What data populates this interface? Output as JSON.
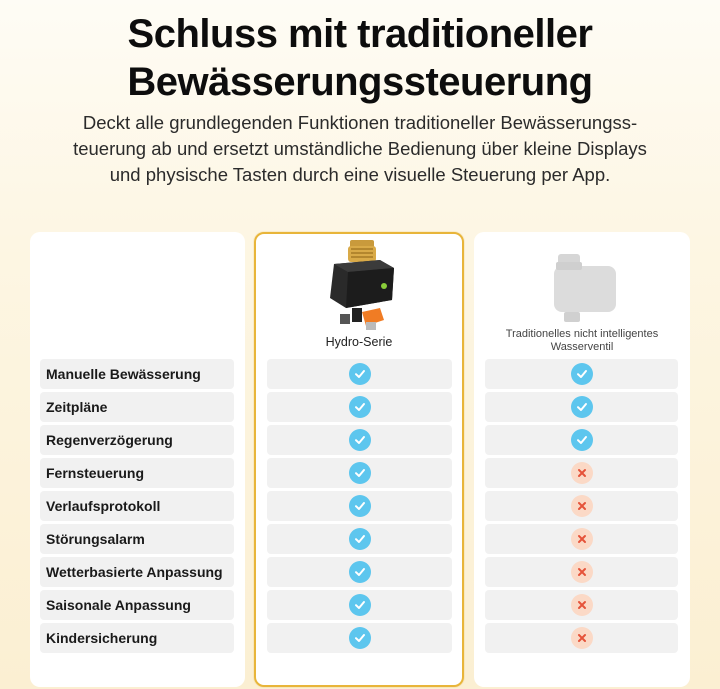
{
  "header": {
    "title_line1": "Schluss mit traditioneller",
    "title_line2": "Bewässerungssteuerung",
    "subtitle_line1": "Deckt alle grundlegenden Funktionen traditioneller Bewässerungss-",
    "subtitle_line2": "teuerung ab und ersetzt umständliche Bedienung über kleine Displays",
    "subtitle_line3": "und physische Tasten durch eine visuelle Steuerung per App."
  },
  "products": {
    "hydro": {
      "name": "Hydro-Serie"
    },
    "traditional": {
      "name_line1": "Traditionelles nicht intelligentes",
      "name_line2": "Wasserventil"
    }
  },
  "colors": {
    "accent_border": "#e8b53a",
    "check": "#5dc6ee",
    "cross_bg": "#fbd9c6",
    "cross_mark": "#e5533a"
  },
  "icons": {
    "check": "check-circle-icon",
    "cross": "cross-circle-icon"
  },
  "features": [
    {
      "label": "Manuelle Bewässerung",
      "hydro": true,
      "traditional": true
    },
    {
      "label": "Zeitpläne",
      "hydro": true,
      "traditional": true
    },
    {
      "label": "Regenverzögerung",
      "hydro": true,
      "traditional": true
    },
    {
      "label": "Fernsteuerung",
      "hydro": true,
      "traditional": false
    },
    {
      "label": "Verlaufsprotokoll",
      "hydro": true,
      "traditional": false
    },
    {
      "label": "Störungsalarm",
      "hydro": true,
      "traditional": false
    },
    {
      "label": "Wetterbasierte Anpassung",
      "hydro": true,
      "traditional": false
    },
    {
      "label": "Saisonale Anpassung",
      "hydro": true,
      "traditional": false
    },
    {
      "label": "Kindersicherung",
      "hydro": true,
      "traditional": false
    }
  ]
}
